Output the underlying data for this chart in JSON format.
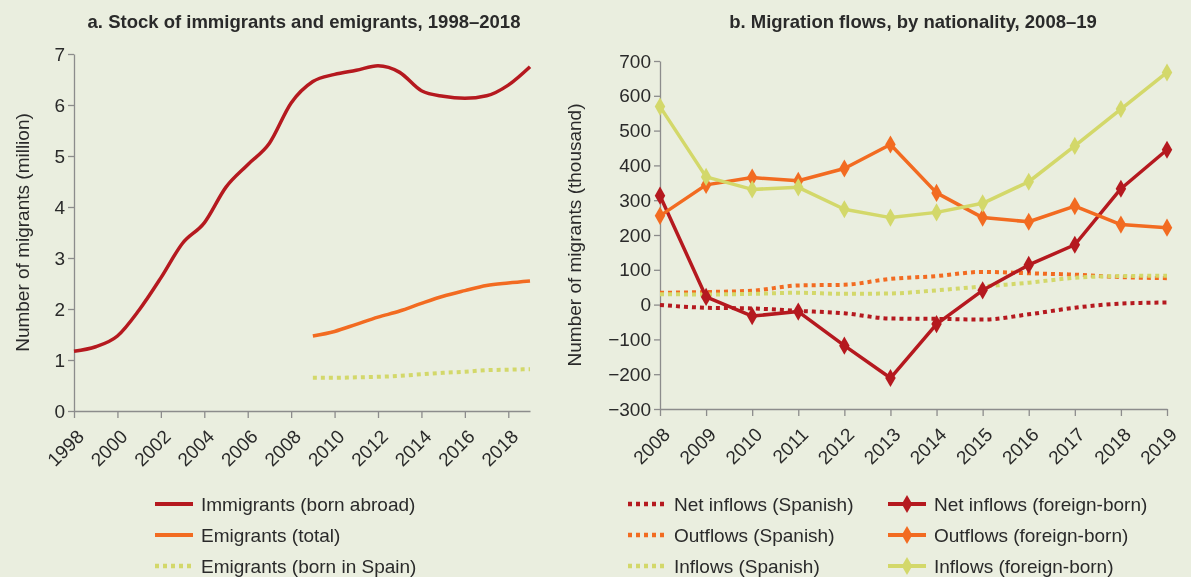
{
  "chart_data": [
    {
      "type": "line",
      "title": "a. Stock of immigrants and emigrants, 1998–2018",
      "ylabel": "Number of migrants (million)",
      "x": [
        1998,
        1999,
        2000,
        2001,
        2002,
        2003,
        2004,
        2005,
        2006,
        2007,
        2008,
        2009,
        2010,
        2011,
        2012,
        2013,
        2014,
        2015,
        2016,
        2017,
        2018,
        2019
      ],
      "xlim": [
        1998,
        2019
      ],
      "xticks": [
        1998,
        2000,
        2002,
        2004,
        2006,
        2008,
        2010,
        2012,
        2014,
        2016,
        2018
      ],
      "ylim": [
        0,
        7
      ],
      "yticks": [
        0,
        1,
        2,
        3,
        4,
        5,
        6,
        7
      ],
      "legend": "bottom",
      "series": [
        {
          "name": "Immigrants (born abroad)",
          "color": "#b5191f",
          "values": [
            1.17,
            1.26,
            1.47,
            1.98,
            2.61,
            3.29,
            3.69,
            4.39,
            4.83,
            5.25,
            6.04,
            6.46,
            6.6,
            6.68,
            6.77,
            6.64,
            6.28,
            6.17,
            6.13,
            6.18,
            6.39,
            6.75
          ]
        },
        {
          "name": "Emigrants (total)",
          "color": "#f26b21",
          "values": [
            null,
            null,
            null,
            null,
            null,
            null,
            null,
            null,
            null,
            null,
            null,
            1.47,
            1.56,
            1.7,
            1.84,
            1.96,
            2.11,
            2.25,
            2.36,
            2.46,
            2.51,
            2.55
          ]
        },
        {
          "name": "Emigrants (born in Spain)",
          "color": "#d3d86a",
          "line_style": "dotted",
          "values": [
            null,
            null,
            null,
            null,
            null,
            null,
            null,
            null,
            null,
            null,
            null,
            0.65,
            0.65,
            0.66,
            0.67,
            0.69,
            0.72,
            0.75,
            0.77,
            0.8,
            0.81,
            0.82
          ]
        }
      ]
    },
    {
      "type": "line",
      "title": "b. Migration flows, by nationality, 2008–19",
      "ylabel": "Number of migrants (thousand)",
      "x": [
        2008,
        2009,
        2010,
        2011,
        2012,
        2013,
        2014,
        2015,
        2016,
        2017,
        2018,
        2019
      ],
      "xlim": [
        2008,
        2019
      ],
      "xticks": [
        2008,
        2009,
        2010,
        2011,
        2012,
        2013,
        2014,
        2015,
        2016,
        2017,
        2018,
        2019
      ],
      "ylim": [
        -300,
        700
      ],
      "yticks": [
        -300,
        -200,
        -100,
        0,
        100,
        200,
        300,
        400,
        500,
        600,
        700
      ],
      "legend": "bottom",
      "series": [
        {
          "name": "Net inflows (Spanish)",
          "color": "#b5191f",
          "line_style": "dotted",
          "values": [
            -1,
            -9,
            -11,
            -18,
            -25,
            -40,
            -41,
            -43,
            -28,
            -9,
            3,
            6
          ]
        },
        {
          "name": "Outflows (Spanish)",
          "color": "#f26b21",
          "line_style": "dotted",
          "values": [
            34,
            36,
            40,
            55,
            57,
            74,
            82,
            94,
            90,
            86,
            79,
            76
          ]
        },
        {
          "name": "Inflows (Spanish)",
          "color": "#d3d86a",
          "line_style": "dotted",
          "values": [
            30,
            29,
            31,
            34,
            31,
            32,
            41,
            52,
            63,
            77,
            82,
            83
          ]
        },
        {
          "name": "Net inflows (foreign-born)",
          "color": "#b5191f",
          "marker": "diamond",
          "values": [
            313,
            22,
            -33,
            -20,
            -118,
            -211,
            -56,
            41,
            114,
            172,
            333,
            445
          ]
        },
        {
          "name": "Outflows (foreign-born)",
          "color": "#f26b21",
          "marker": "diamond",
          "values": [
            255,
            344,
            365,
            356,
            391,
            460,
            321,
            250,
            238,
            283,
            230,
            221
          ]
        },
        {
          "name": "Inflows (foreign-born)",
          "color": "#d3d86a",
          "marker": "diamond",
          "values": [
            569,
            367,
            331,
            337,
            274,
            250,
            265,
            291,
            353,
            456,
            562,
            667
          ]
        }
      ]
    }
  ]
}
